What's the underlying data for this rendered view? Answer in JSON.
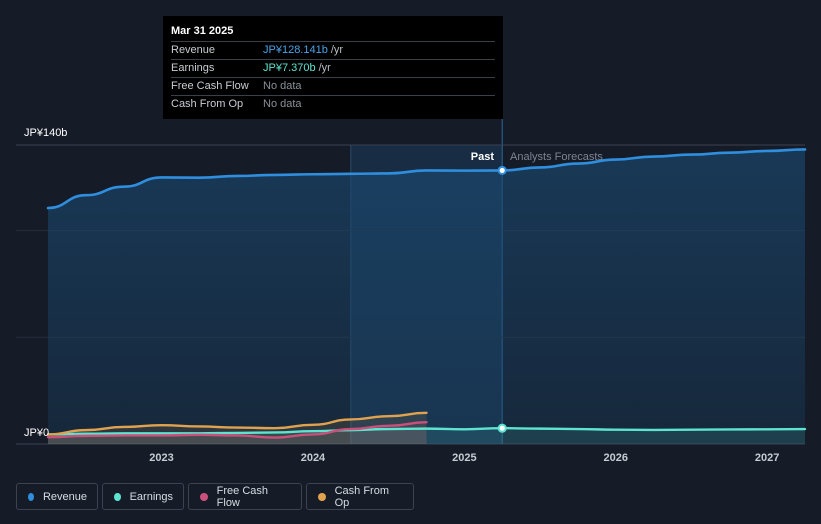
{
  "tooltip": {
    "date": "Mar 31 2025",
    "rows": [
      {
        "label": "Revenue",
        "value": "JP¥128.141b",
        "unit": "/yr",
        "color": "#4aa3e8"
      },
      {
        "label": "Earnings",
        "value": "JP¥7.370b",
        "unit": "/yr",
        "color": "#5de3cf"
      },
      {
        "label": "Free Cash Flow",
        "value": "No data",
        "unit": "",
        "color": ""
      },
      {
        "label": "Cash From Op",
        "value": "No data",
        "unit": "",
        "color": ""
      }
    ]
  },
  "labels": {
    "past": "Past",
    "forecast": "Analysts Forecasts"
  },
  "legend": [
    {
      "label": "Revenue",
      "color": "#2f8fde"
    },
    {
      "label": "Earnings",
      "color": "#5de3cf"
    },
    {
      "label": "Free Cash Flow",
      "color": "#c9507a"
    },
    {
      "label": "Cash From Op",
      "color": "#e0a24e"
    }
  ],
  "chart_data": {
    "type": "line",
    "y_tick_labels": [
      "JP¥140b",
      "JP¥0"
    ],
    "ylim": [
      0,
      140
    ],
    "xlim": [
      2022.25,
      2027.25
    ],
    "x_tick_labels": [
      "2023",
      "2024",
      "2025",
      "2026",
      "2027"
    ],
    "x_ticks": [
      2023,
      2024,
      2025,
      2026,
      2027
    ],
    "past_region": [
      2024.25,
      2025.25
    ],
    "divider_x": 2025.25,
    "grid": true,
    "series": [
      {
        "name": "Revenue",
        "color": "#2f8fde",
        "x": [
          2022.25,
          2022.5,
          2022.75,
          2023.0,
          2023.25,
          2023.5,
          2023.75,
          2024.0,
          2024.25,
          2024.5,
          2024.75,
          2025.0,
          2025.25,
          2025.5,
          2025.75,
          2026.0,
          2026.25,
          2026.5,
          2026.75,
          2027.0,
          2027.25
        ],
        "y": [
          110.5,
          116.5,
          120.5,
          124.8,
          124.7,
          125.5,
          126.0,
          126.3,
          126.5,
          126.7,
          128.1,
          128.0,
          128.1,
          129.5,
          131.3,
          133.2,
          134.6,
          135.5,
          136.4,
          137.2,
          137.9
        ]
      },
      {
        "name": "Earnings",
        "color": "#5de3cf",
        "x": [
          2022.25,
          2022.5,
          2022.75,
          2023.0,
          2023.25,
          2023.5,
          2023.75,
          2024.0,
          2024.25,
          2024.5,
          2024.75,
          2025.0,
          2025.25,
          2025.5,
          2025.75,
          2026.0,
          2026.25,
          2026.5,
          2026.75,
          2027.0,
          2027.25
        ],
        "y": [
          4.5,
          4.8,
          5.0,
          5.0,
          5.0,
          5.2,
          5.4,
          6.0,
          6.5,
          7.0,
          7.2,
          6.9,
          7.4,
          7.2,
          7.0,
          6.7,
          6.6,
          6.7,
          6.8,
          6.9,
          7.0
        ]
      },
      {
        "name": "Free Cash Flow",
        "color": "#c9507a",
        "x": [
          2022.25,
          2022.5,
          2022.75,
          2023.0,
          2023.25,
          2023.5,
          2023.75,
          2024.0,
          2024.25,
          2024.5,
          2024.75
        ],
        "y": [
          3.2,
          3.8,
          4.0,
          4.0,
          4.3,
          4.0,
          3.0,
          4.5,
          7.0,
          8.5,
          10.2
        ]
      },
      {
        "name": "Cash From Op",
        "color": "#e0a24e",
        "x": [
          2022.25,
          2022.5,
          2022.75,
          2023.0,
          2023.25,
          2023.5,
          2023.75,
          2024.0,
          2024.25,
          2024.5,
          2024.75
        ],
        "y": [
          4.5,
          6.5,
          8.0,
          8.8,
          8.2,
          7.7,
          7.4,
          9.0,
          11.5,
          13.0,
          14.6
        ]
      }
    ]
  }
}
